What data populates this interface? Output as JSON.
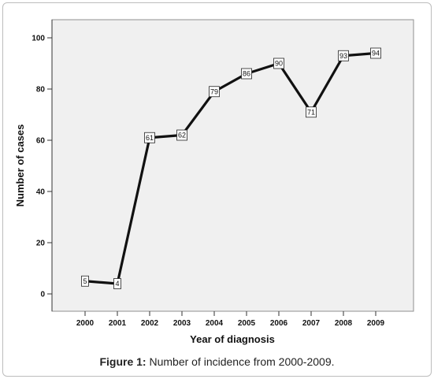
{
  "chart_data": {
    "type": "line",
    "x": [
      "2000",
      "2001",
      "2002",
      "2003",
      "2004",
      "2005",
      "2006",
      "2007",
      "2008",
      "2009"
    ],
    "series": [
      {
        "values": [
          5,
          4,
          61,
          62,
          79,
          86,
          90,
          71,
          93,
          94
        ]
      }
    ],
    "xlabel": "Year of diagnosis",
    "ylabel": "Number of cases",
    "ylim": [
      0,
      100
    ],
    "yticks": [
      0,
      20,
      40,
      60,
      80,
      100
    ],
    "data_labels": true,
    "grid": false,
    "plot_background": "#f0f0f0",
    "line_color": "#111111"
  },
  "caption": {
    "prefix": "Figure 1:",
    "text": " Number of incidence from 2000-2009."
  }
}
